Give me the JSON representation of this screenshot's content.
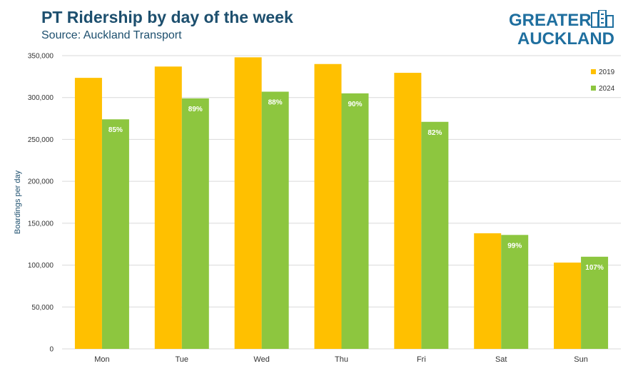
{
  "header": {
    "title": "PT Ridership by day of the week",
    "subtitle": "Source: Auckland Transport"
  },
  "logo": {
    "line1": "GREATER",
    "line2": "AUCKLAND"
  },
  "colors": {
    "series_2019": "#FFC000",
    "series_2024": "#8DC63F",
    "title": "#1d4f6e",
    "logo": "#1f6f9f",
    "grid": "#d9d9d9"
  },
  "chart_data": {
    "type": "bar",
    "categories": [
      "Mon",
      "Tue",
      "Wed",
      "Thu",
      "Fri",
      "Sat",
      "Sun"
    ],
    "series": [
      {
        "name": "2019",
        "values": [
          323500,
          337000,
          348000,
          340000,
          329500,
          138000,
          103000
        ]
      },
      {
        "name": "2024",
        "values": [
          274000,
          299000,
          307000,
          305000,
          271000,
          136000,
          110000
        ],
        "labels": [
          "85%",
          "89%",
          "88%",
          "90%",
          "82%",
          "99%",
          "107%"
        ]
      }
    ],
    "ylabel": "Boardings per day",
    "ylim": [
      0,
      350000
    ],
    "yticks": [
      0,
      50000,
      100000,
      150000,
      200000,
      250000,
      300000,
      350000
    ],
    "ytick_labels": [
      "0",
      "50,000",
      "100,000",
      "150,000",
      "200,000",
      "250,000",
      "300,000",
      "350,000"
    ],
    "grid": true,
    "legend_position": "top-right"
  }
}
